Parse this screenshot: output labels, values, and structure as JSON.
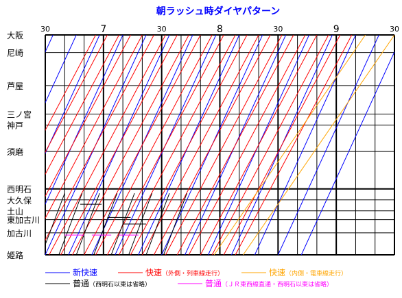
{
  "chart_data": {
    "type": "line",
    "title": "朝ラッシュ時ダイヤパターン",
    "x_axis": {
      "ticks": [
        {
          "label": "30",
          "minute": 0,
          "major": false
        },
        {
          "label": "7",
          "minute": 30,
          "major": true
        },
        {
          "label": "30",
          "minute": 60,
          "major": false
        },
        {
          "label": "8",
          "minute": 90,
          "major": true
        },
        {
          "label": "30",
          "minute": 120,
          "major": false
        },
        {
          "label": "9",
          "minute": 150,
          "major": true
        },
        {
          "label": "30",
          "minute": 180,
          "major": false
        }
      ],
      "range_minutes": [
        0,
        180
      ],
      "gridline_interval_minutes": 10
    },
    "stations": [
      {
        "name": "大阪",
        "pos": 0
      },
      {
        "name": "尼崎",
        "pos": 8
      },
      {
        "name": "芦屋",
        "pos": 23
      },
      {
        "name": "三ノ宮",
        "pos": 36
      },
      {
        "name": "神戸",
        "pos": 41
      },
      {
        "name": "須磨",
        "pos": 53
      },
      {
        "name": "西明石",
        "pos": 70
      },
      {
        "name": "大久保",
        "pos": 75
      },
      {
        "name": "土山",
        "pos": 80
      },
      {
        "name": "東加古川",
        "pos": 84
      },
      {
        "name": "加古川",
        "pos": 90
      },
      {
        "name": "姫路",
        "pos": 100
      }
    ],
    "legend": [
      {
        "label": "新快速",
        "note": "",
        "color": "#0000ff"
      },
      {
        "label": "快速",
        "note": "（外側・列車線走行）",
        "color": "#ff0000"
      },
      {
        "label": "快速",
        "note": "（内側・電車線走行）",
        "color": "#ffa500"
      },
      {
        "label": "普通",
        "note": "（西明石以東は省略）",
        "color": "#000000"
      },
      {
        "label": "普通",
        "note": "（ＪＲ東西線直通・西明石以東は省略）",
        "color": "#ff00ff"
      }
    ]
  }
}
